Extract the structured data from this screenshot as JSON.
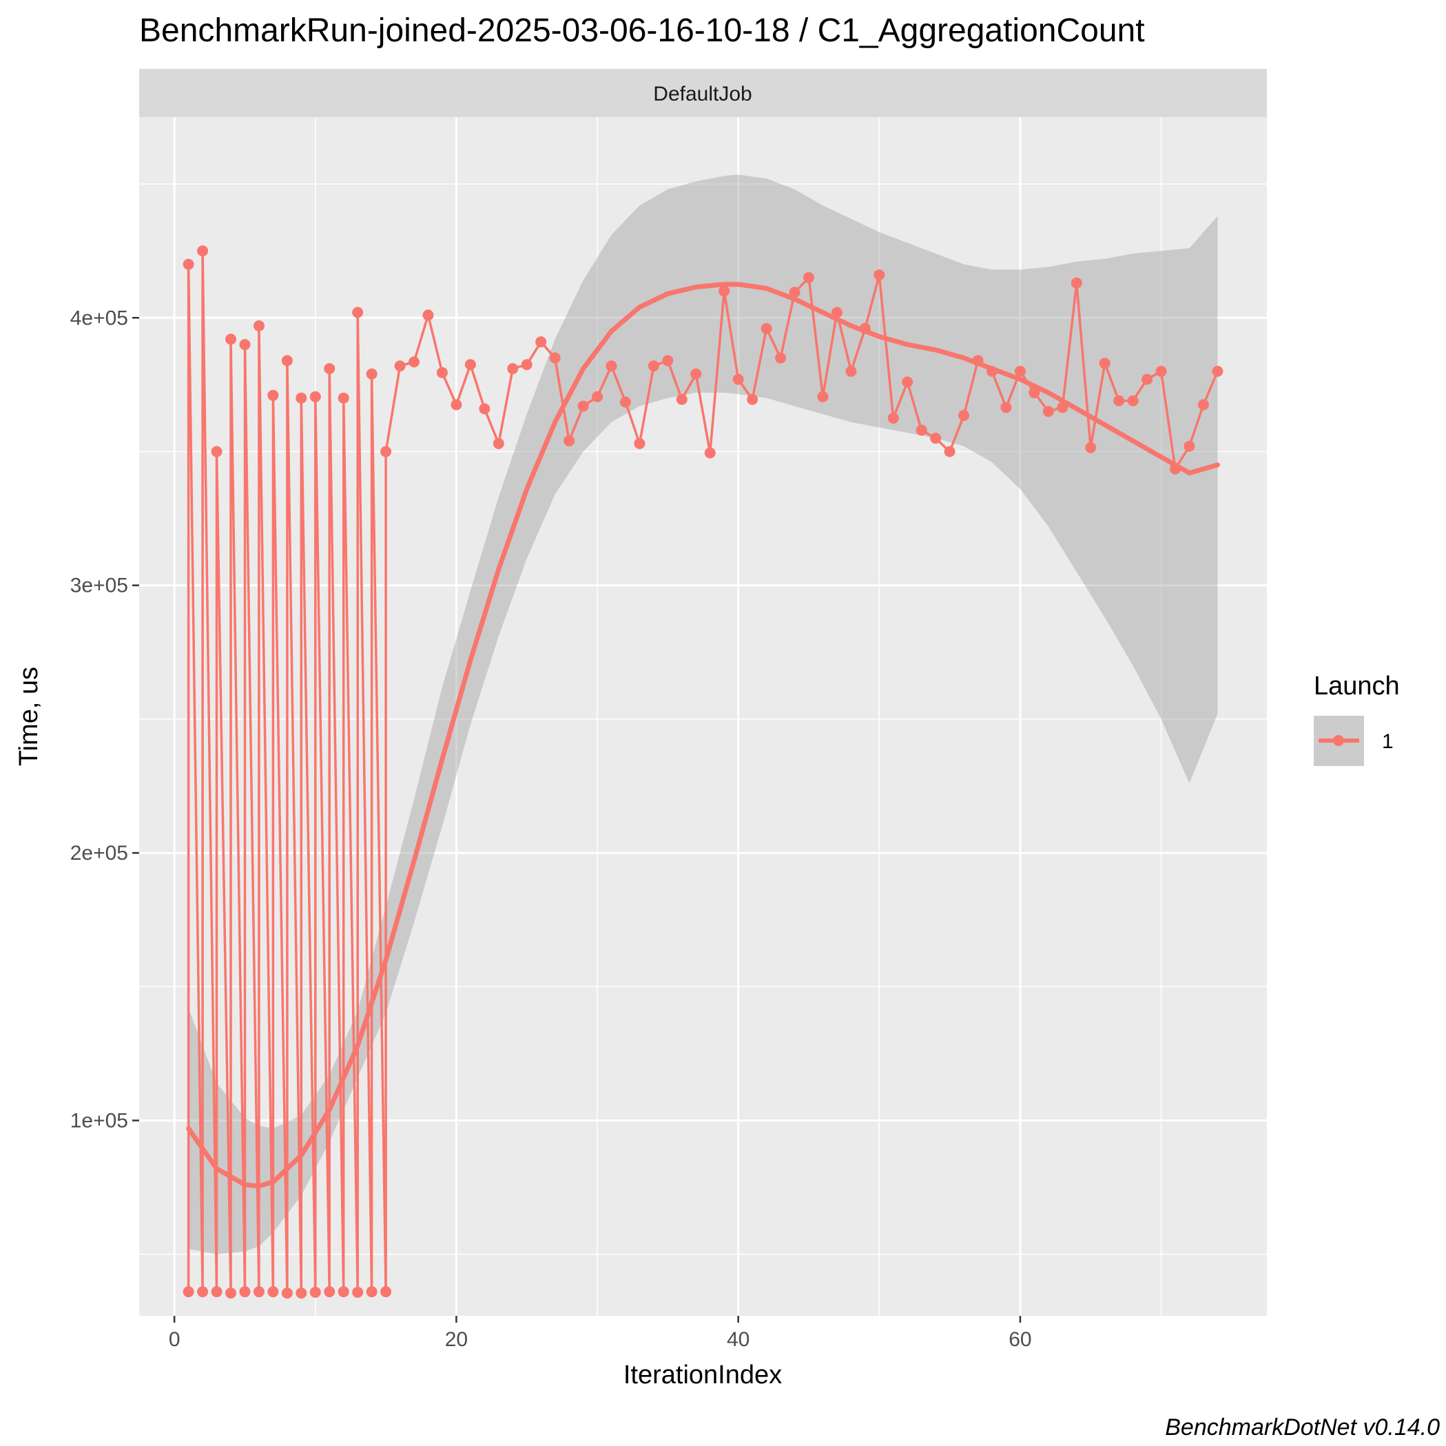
{
  "chart_data": {
    "type": "line",
    "title": "BenchmarkRun-joined-2025-03-06-16-10-18 / C1_AggregationCount",
    "facet": "DefaultJob",
    "xlabel": "IterationIndex",
    "ylabel": "Time, us",
    "caption": "BenchmarkDotNet v0.14.0",
    "xlim": [
      -2.5,
      77.5
    ],
    "ylim": [
      27000,
      475000
    ],
    "x_ticks": [
      0,
      20,
      40,
      60
    ],
    "x_tick_labels": [
      "0",
      "20",
      "40",
      "60"
    ],
    "y_ticks": [
      100000,
      200000,
      300000,
      400000
    ],
    "y_tick_labels": [
      "1e+05",
      "2e+05",
      "3e+05",
      "4e+05"
    ],
    "grid": true,
    "legend": {
      "title": "Launch",
      "position": "right",
      "entries": [
        "1"
      ]
    },
    "colors": {
      "series": "#F8766D",
      "ribbon": "#999999",
      "panel": "#EBEBEB",
      "strip": "#D9D9D9"
    },
    "series": [
      {
        "name": "1",
        "x": [
          1,
          1,
          2,
          2,
          3,
          3,
          4,
          4,
          5,
          5,
          6,
          6,
          7,
          7,
          8,
          8,
          9,
          9,
          10,
          10,
          11,
          11,
          12,
          12,
          13,
          13,
          14,
          14,
          15,
          15,
          16,
          17,
          18,
          19,
          20,
          21,
          22,
          23,
          24,
          25,
          26,
          27,
          28,
          29,
          30,
          31,
          32,
          33,
          34,
          35,
          36,
          37,
          38,
          39,
          40,
          41,
          42,
          43,
          44,
          45,
          46,
          47,
          48,
          49,
          50,
          51,
          52,
          53,
          54,
          55,
          56,
          57,
          58,
          59,
          60,
          61,
          62,
          63,
          64,
          65,
          66,
          67,
          68,
          69,
          70,
          71,
          72,
          73,
          74
        ],
        "y": [
          36000,
          420000,
          36000,
          425000,
          36000,
          350000,
          35500,
          392000,
          36000,
          390000,
          36000,
          397000,
          36000,
          371000,
          35500,
          384000,
          35500,
          370000,
          35800,
          370500,
          36000,
          381000,
          36000,
          370000,
          35800,
          402000,
          36000,
          379000,
          36000,
          350000,
          382000,
          383500,
          401000,
          379500,
          367500,
          382500,
          366000,
          353000,
          381000,
          382500,
          391000,
          385000,
          354000,
          367000,
          370500,
          382000,
          368500,
          353000,
          382000,
          384000,
          369500,
          379000,
          349500,
          410000,
          377000,
          369500,
          396000,
          385000,
          409500,
          415000,
          370500,
          402000,
          380000,
          396000,
          416000,
          362500,
          376000,
          358000,
          355000,
          350000,
          363500,
          384000,
          380000,
          366500,
          380000,
          372000,
          365000,
          366500,
          413000,
          351500,
          383000,
          369000,
          369000,
          377000,
          380000,
          343500,
          352000,
          367500,
          380000
        ]
      }
    ],
    "smooth": {
      "x": [
        1,
        3,
        5,
        6,
        7,
        9,
        11,
        13,
        15,
        17,
        19,
        21,
        23,
        25,
        27,
        29,
        31,
        33,
        35,
        37,
        39,
        40,
        42,
        44,
        46,
        48,
        50,
        52,
        54,
        56,
        58,
        60,
        62,
        64,
        66,
        68,
        70,
        72,
        74
      ],
      "y": [
        97000,
        82000,
        76000,
        75500,
        77000,
        87000,
        104000,
        128000,
        160000,
        197000,
        235000,
        272000,
        306000,
        336000,
        361000,
        381000,
        395000,
        404000,
        409000,
        411500,
        412500,
        412500,
        411000,
        407000,
        402000,
        397000,
        393000,
        390000,
        388000,
        385000,
        381000,
        377000,
        372000,
        366000,
        360000,
        354000,
        348000,
        342000,
        345000
      ],
      "lower": [
        52000,
        50000,
        51000,
        53000,
        58000,
        72000,
        92000,
        116000,
        140000,
        174000,
        210000,
        248000,
        281000,
        310000,
        334000,
        350000,
        361000,
        367000,
        370000,
        372000,
        372000,
        371500,
        370000,
        367000,
        364000,
        361000,
        359000,
        357000,
        355000,
        352000,
        346000,
        336000,
        322000,
        305000,
        288000,
        270000,
        250000,
        226000,
        252000
      ],
      "upper": [
        142000,
        114000,
        101000,
        98000,
        97000,
        102000,
        117000,
        141000,
        180000,
        220000,
        262000,
        298000,
        333000,
        364000,
        392000,
        414000,
        431000,
        442000,
        448000,
        451000,
        453000,
        453500,
        452000,
        448000,
        442000,
        437000,
        432000,
        428000,
        424000,
        420000,
        418000,
        418000,
        419000,
        421000,
        422000,
        424000,
        425000,
        426000,
        438000
      ]
    }
  }
}
